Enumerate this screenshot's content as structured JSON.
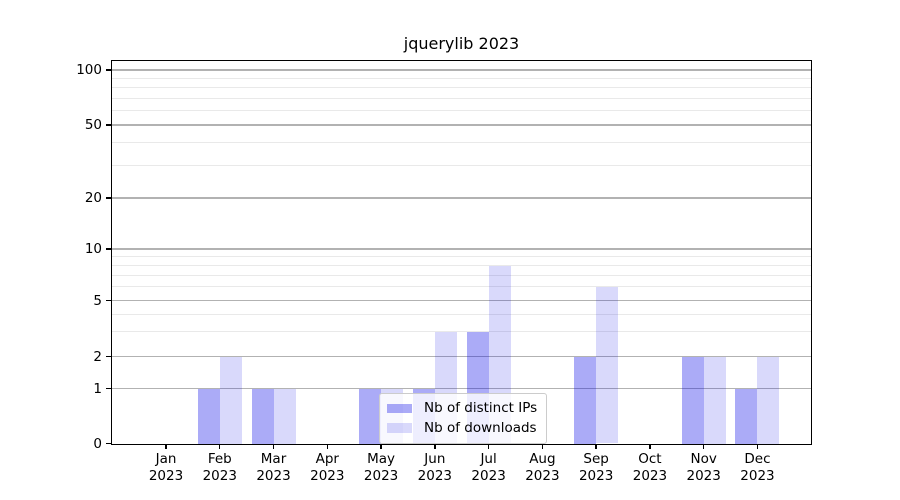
{
  "chart_data": {
    "type": "bar",
    "title": "jquerylib 2023",
    "categories": [
      "Jan",
      "Feb",
      "Mar",
      "Apr",
      "May",
      "Jun",
      "Jul",
      "Aug",
      "Sep",
      "Oct",
      "Nov",
      "Dec"
    ],
    "category_year": "2023",
    "series": [
      {
        "name": "Nb of distinct IPs",
        "color": "rgba(0,0,230,0.33)",
        "values": [
          0,
          1,
          1,
          0,
          1,
          1,
          3,
          0,
          2,
          0,
          2,
          1
        ]
      },
      {
        "name": "Nb of downloads",
        "color": "rgba(0,0,230,0.15)",
        "values": [
          0,
          2,
          1,
          0,
          1,
          3,
          8,
          0,
          6,
          0,
          2,
          2
        ]
      }
    ],
    "yscale": "symlog",
    "y_ticks": [
      0,
      1,
      2,
      5,
      10,
      20,
      50,
      100
    ],
    "y_minor_ticks": [
      3,
      4,
      6,
      7,
      8,
      9,
      30,
      40,
      60,
      70,
      80,
      90
    ],
    "ylim": [
      0,
      112
    ],
    "xlabel": "",
    "ylabel": "",
    "grid": true,
    "legend_position": "lower-center-inside",
    "colors": {
      "major_grid": "#b2b2b2",
      "minor_grid": "#e9e9e9",
      "spine": "#000000",
      "background": "#ffffff"
    }
  }
}
